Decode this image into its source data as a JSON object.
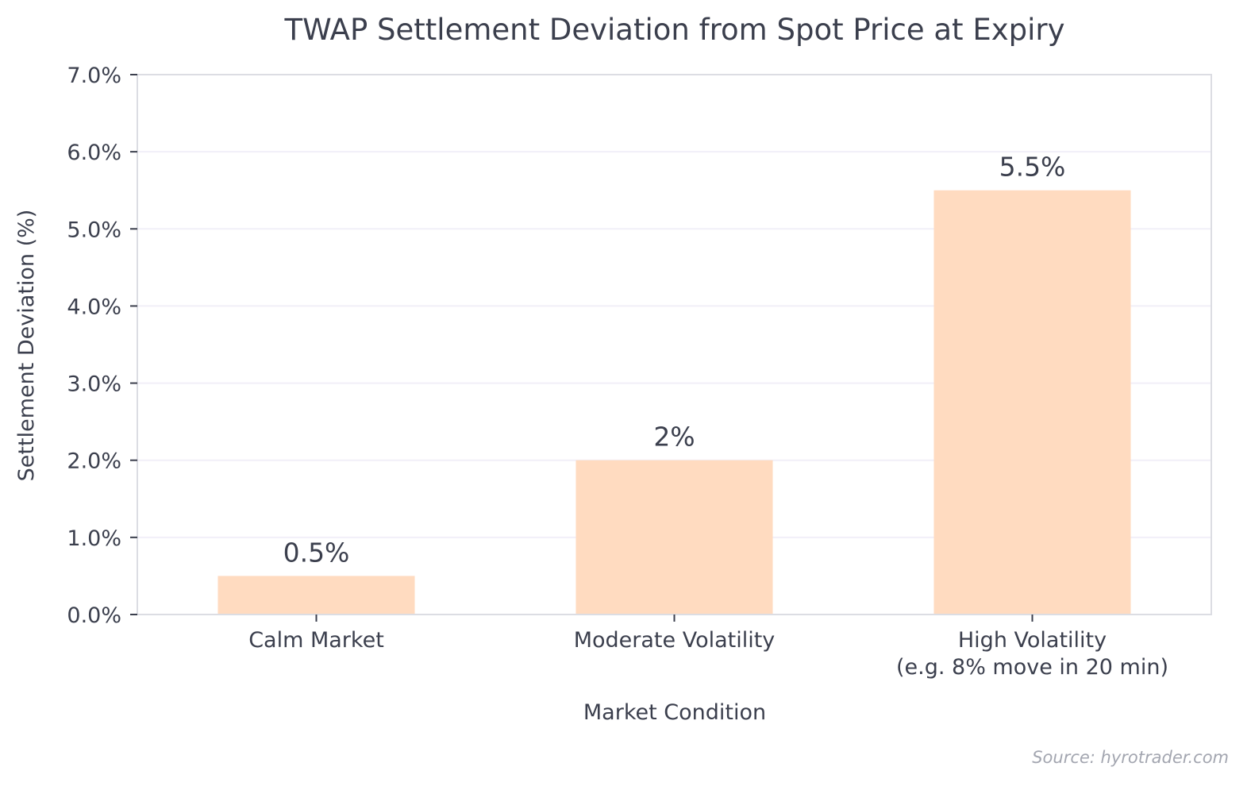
{
  "chart_data": {
    "type": "bar",
    "title": "TWAP Settlement Deviation from Spot Price at Expiry",
    "xlabel": "Market Condition",
    "ylabel": "Settlement Deviation (%)",
    "categories": [
      [
        "Calm Market"
      ],
      [
        "Moderate Volatility"
      ],
      [
        "High Volatility",
        "(e.g. 8% move in 20 min)"
      ]
    ],
    "values": [
      0.5,
      2.0,
      5.5
    ],
    "value_labels": [
      "0.5%",
      "2%",
      "5.5%"
    ],
    "ylim": [
      0,
      7
    ],
    "yticks": [
      0,
      1,
      2,
      3,
      4,
      5,
      6,
      7
    ],
    "ytick_labels": [
      "0.0%",
      "1.0%",
      "2.0%",
      "3.0%",
      "4.0%",
      "5.0%",
      "6.0%",
      "7.0%"
    ],
    "grid": true,
    "bar_color": "#ffdbc0",
    "text_color": "#3b3f4d",
    "grid_color": "#f1eff8",
    "axis_color": "#dcdde3"
  },
  "source": "Source: hyrotrader.com"
}
